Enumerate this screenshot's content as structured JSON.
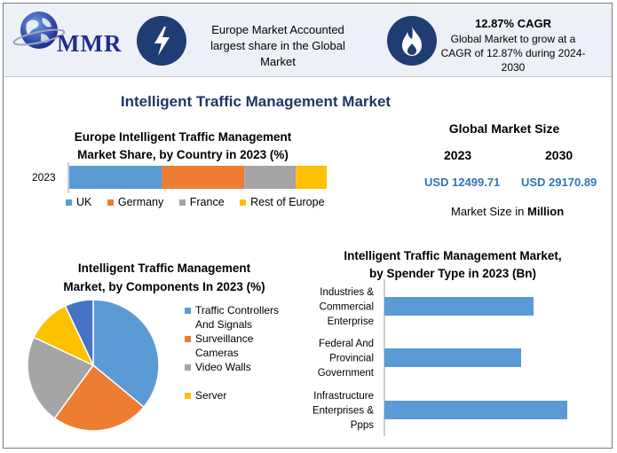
{
  "header": {
    "logo_text": "MMR",
    "europe_share": "Europe Market Accounted largest share in the Global Market",
    "cagr_title": "12.87% CAGR",
    "cagr_text": "Global Market to grow at a CAGR of 12.87% during 2024-2030",
    "icons": {
      "bolt": "lightning-bolt-icon",
      "flame": "flame-icon",
      "globe": "globe-icon"
    }
  },
  "main_title": "Intelligent Traffic Management Market",
  "market_size": {
    "title": "Global Market Size",
    "year_a": "2023",
    "year_b": "2030",
    "value_a": "USD 12499.71",
    "value_b": "USD 29170.89",
    "unit_prefix": "Market Size in",
    "unit_strong": "Million"
  },
  "colors": {
    "blue": "#5b9bd5",
    "orange": "#ed7d31",
    "gray": "#a5a5a5",
    "yellow": "#ffc000",
    "title_blue": "#1f3864",
    "value_blue": "#2e75b6"
  },
  "chart_data": [
    {
      "type": "bar",
      "orientation": "horizontal-stacked",
      "title_line1": "Europe Intelligent Traffic Management",
      "title_line2": "Market Share, by Country in 2023 (%)",
      "categories": [
        "2023"
      ],
      "series": [
        {
          "name": "UK",
          "values": [
            36
          ]
        },
        {
          "name": "Germany",
          "values": [
            32
          ]
        },
        {
          "name": "France",
          "values": [
            20
          ]
        },
        {
          "name": "Rest of Europe",
          "values": [
            12
          ]
        }
      ],
      "xlim": [
        0,
        100
      ]
    },
    {
      "type": "pie",
      "title_line1": "Intelligent Traffic Management",
      "title_line2": "Market, by Components In 2023 (%)",
      "labels": [
        "Traffic Controllers And Signals",
        "Surveillance Cameras",
        "Video Walls",
        "Server",
        ""
      ],
      "legend": [
        {
          "line1": "Traffic Controllers",
          "line2": "And Signals"
        },
        {
          "line1": "Surveillance",
          "line2": "Cameras"
        },
        {
          "line1": "Video Walls",
          "line2": ""
        },
        {
          "line1": "Server",
          "line2": ""
        }
      ],
      "values": [
        36,
        24,
        22,
        11,
        7
      ]
    },
    {
      "type": "bar",
      "orientation": "horizontal",
      "title_line1": "Intelligent Traffic Management Market,",
      "title_line2": "by Spender Type in 2023 (Bn)",
      "categories": [
        [
          "Industries &",
          "Commercial",
          "Enterprise"
        ],
        [
          "Federal And",
          "Provincial",
          "Government"
        ],
        [
          "Infrastructure",
          "Enterprises &",
          "Ppps"
        ]
      ],
      "values": [
        4.2,
        3.85,
        5.15
      ],
      "xlim": [
        0,
        5.5
      ]
    }
  ]
}
